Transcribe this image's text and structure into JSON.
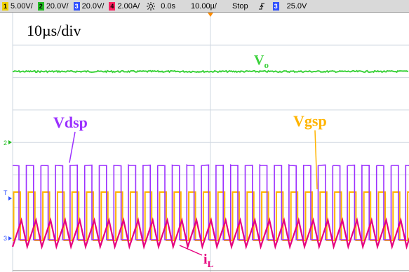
{
  "status_bar": {
    "ch1": {
      "num": "1",
      "scale": "5.00V/",
      "color": "#f0d000"
    },
    "ch2": {
      "num": "2",
      "scale": "20.0V/",
      "color": "#22bb22"
    },
    "ch3": {
      "num": "3",
      "scale": "20.0V/",
      "color": "#3050ff"
    },
    "ch4": {
      "num": "4",
      "scale": "2.00A/",
      "color": "#ff2060"
    },
    "time_offset": "0.0s",
    "time_scale": "10.00µ/",
    "run_state": "Stop",
    "trigger_channel": "3",
    "trigger_level": "25.0V"
  },
  "timebase_label": "10µs/div",
  "traces": {
    "vo": {
      "label_main": "V",
      "label_sub": "o",
      "color": "#3cd23c"
    },
    "vdsp": {
      "label": "Vdsp",
      "color": "#9b30ff"
    },
    "vgsp": {
      "label": "Vgsp",
      "color": "#ffb400"
    },
    "il": {
      "label_main": "i",
      "label_sub": "L",
      "color": "#e6007e"
    }
  },
  "markers": {
    "m2": "2",
    "mT": "T",
    "m3": "3"
  },
  "icons": {
    "trigger_icon": "trigger-edge-icon",
    "dim_icon": "brightness-icon"
  }
}
